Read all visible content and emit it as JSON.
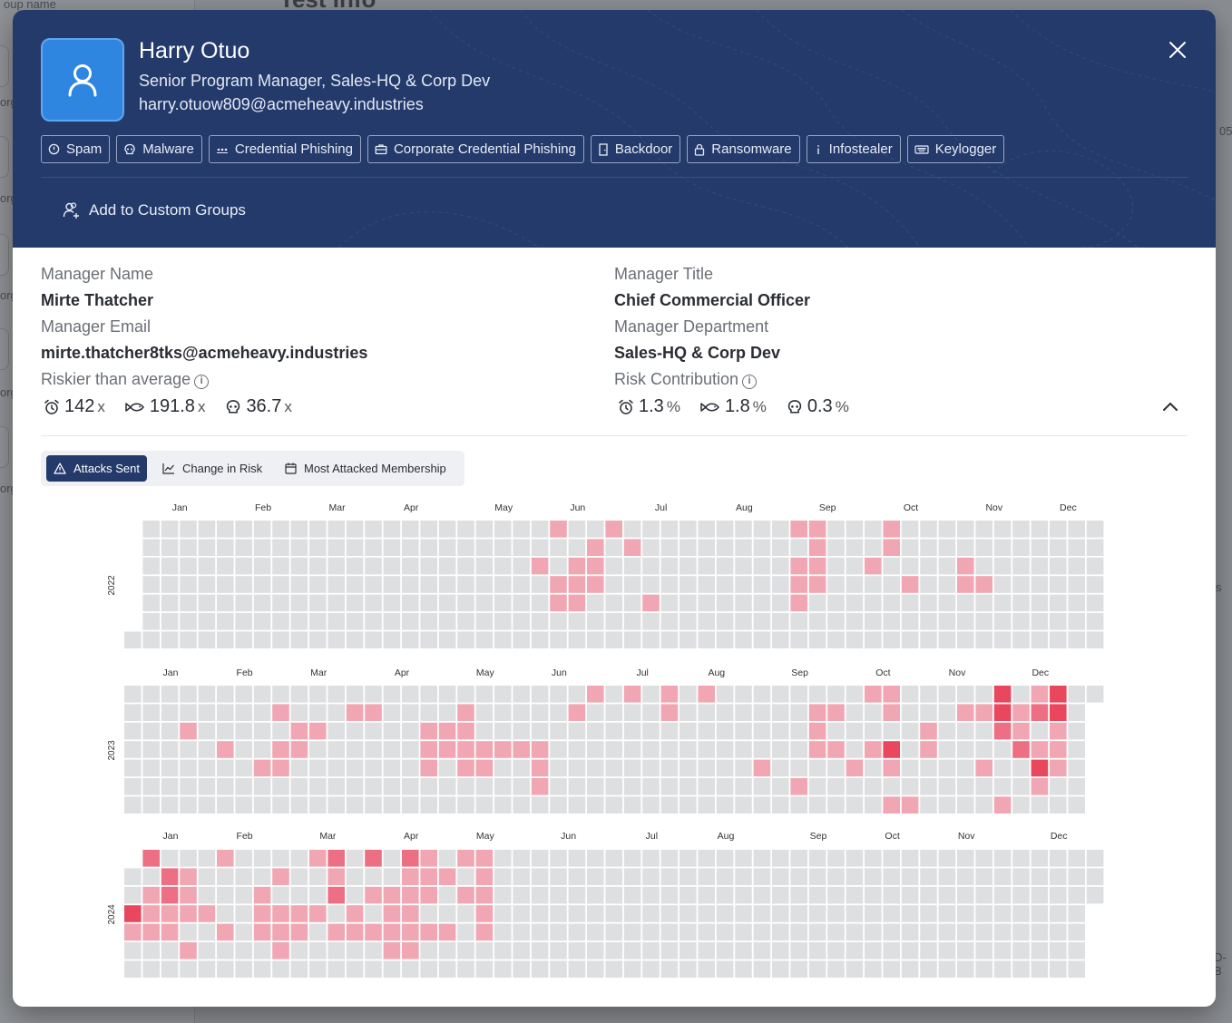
{
  "background": {
    "group_name_label": "oup name",
    "page_title": "Test Info",
    "stub_texts": [
      "org",
      "org",
      "org",
      "org",
      "org"
    ],
    "right_stubs": [
      "05",
      "s",
      "D-B"
    ]
  },
  "profile": {
    "name": "Harry Otuo",
    "title": "Senior Program Manager,  Sales-HQ & Corp Dev",
    "email": "harry.otuow809@acmeheavy.industries",
    "tags": [
      {
        "label": "Spam",
        "icon": "alert-circle-icon"
      },
      {
        "label": "Malware",
        "icon": "skull-icon"
      },
      {
        "label": "Credential Phishing",
        "icon": "dots-icon"
      },
      {
        "label": "Corporate Credential Phishing",
        "icon": "briefcase-icon"
      },
      {
        "label": "Backdoor",
        "icon": "door-icon"
      },
      {
        "label": "Ransomware",
        "icon": "lock-icon"
      },
      {
        "label": "Infostealer",
        "icon": "info-icon"
      },
      {
        "label": "Keylogger",
        "icon": "keyboard-icon"
      }
    ],
    "add_to_groups": "Add to Custom Groups"
  },
  "details": {
    "manager_name_label": "Manager Name",
    "manager_name": "Mirte Thatcher",
    "manager_email_label": "Manager Email",
    "manager_email": "mirte.thatcher8tks@acmeheavy.industries",
    "riskier_label": "Riskier than average",
    "manager_title_label": "Manager Title",
    "manager_title": "Chief Commercial Officer",
    "manager_department_label": "Manager Department",
    "manager_department": "Sales-HQ & Corp Dev",
    "risk_contribution_label": "Risk Contribution",
    "riskier_metrics": [
      {
        "icon": "alarm-icon",
        "value": "142",
        "unit": "x"
      },
      {
        "icon": "fish-icon",
        "value": "191.8",
        "unit": "x"
      },
      {
        "icon": "skull-icon",
        "value": "36.7",
        "unit": "x"
      }
    ],
    "contribution_metrics": [
      {
        "icon": "alarm-icon",
        "value": "1.3",
        "unit": "%"
      },
      {
        "icon": "fish-icon",
        "value": "1.8",
        "unit": "%"
      },
      {
        "icon": "skull-icon",
        "value": "0.3",
        "unit": "%"
      }
    ]
  },
  "tabs": [
    {
      "label": "Attacks Sent",
      "active": true,
      "icon": "warning-icon"
    },
    {
      "label": "Change in Risk",
      "active": false,
      "icon": "line-chart-icon"
    },
    {
      "label": "Most Attacked Membership",
      "active": false,
      "icon": "calendar-icon"
    }
  ],
  "colors": {
    "header": "#243a6b",
    "cell_empty": "#dedfe1",
    "level1": "#f0a7b3",
    "level2": "#ec6f83",
    "level3": "#e8475e"
  },
  "chart_data": {
    "type": "heatmap",
    "description_levels": "0 = no attacks, 1 = light, 2 = medium, 3 = high",
    "months": [
      "Jan",
      "Feb",
      "Mar",
      "Apr",
      "May",
      "Jun",
      "Jul",
      "Aug",
      "Sep",
      "Oct",
      "Nov",
      "Dec"
    ],
    "years": [
      {
        "year": "2022",
        "first_weekday": 6,
        "last_week": 52,
        "cells": [
          [
            23,
            0,
            1
          ],
          [
            22,
            2,
            1
          ],
          [
            24,
            2,
            1
          ],
          [
            23,
            3,
            1
          ],
          [
            24,
            3,
            1
          ],
          [
            25,
            3,
            1
          ],
          [
            26,
            0,
            1
          ],
          [
            27,
            1,
            1
          ],
          [
            24,
            4,
            1
          ],
          [
            28,
            4,
            1
          ],
          [
            23,
            4,
            1
          ],
          [
            25,
            1,
            1
          ],
          [
            25,
            2,
            1
          ],
          [
            36,
            0,
            1
          ],
          [
            37,
            0,
            1
          ],
          [
            37,
            1,
            1
          ],
          [
            36,
            2,
            1
          ],
          [
            37,
            2,
            1
          ],
          [
            36,
            3,
            1
          ],
          [
            37,
            3,
            1
          ],
          [
            36,
            4,
            1
          ],
          [
            41,
            0,
            1
          ],
          [
            41,
            1,
            1
          ],
          [
            40,
            2,
            1
          ],
          [
            42,
            3,
            1
          ],
          [
            45,
            2,
            1
          ],
          [
            45,
            3,
            1
          ],
          [
            46,
            3,
            1
          ]
        ]
      },
      {
        "year": "2023",
        "first_weekday": 0,
        "last_week": 52,
        "cells": [
          [
            3,
            2,
            1
          ],
          [
            5,
            3,
            1
          ],
          [
            7,
            4,
            1
          ],
          [
            8,
            1,
            1
          ],
          [
            8,
            3,
            1
          ],
          [
            8,
            4,
            1
          ],
          [
            9,
            2,
            1
          ],
          [
            10,
            2,
            1
          ],
          [
            9,
            3,
            1
          ],
          [
            12,
            1,
            1
          ],
          [
            13,
            1,
            1
          ],
          [
            16,
            2,
            1
          ],
          [
            17,
            2,
            1
          ],
          [
            17,
            3,
            1
          ],
          [
            18,
            2,
            1
          ],
          [
            18,
            3,
            1
          ],
          [
            19,
            3,
            1
          ],
          [
            16,
            3,
            1
          ],
          [
            16,
            4,
            1
          ],
          [
            18,
            4,
            1
          ],
          [
            19,
            4,
            1
          ],
          [
            18,
            1,
            1
          ],
          [
            20,
            3,
            1
          ],
          [
            21,
            3,
            1
          ],
          [
            22,
            3,
            1
          ],
          [
            22,
            4,
            1
          ],
          [
            22,
            5,
            1
          ],
          [
            24,
            1,
            1
          ],
          [
            25,
            0,
            1
          ],
          [
            27,
            0,
            1
          ],
          [
            29,
            0,
            1
          ],
          [
            29,
            1,
            1
          ],
          [
            31,
            0,
            1
          ],
          [
            34,
            4,
            1
          ],
          [
            36,
            5,
            1
          ],
          [
            37,
            1,
            1
          ],
          [
            37,
            2,
            1
          ],
          [
            37,
            3,
            1
          ],
          [
            38,
            1,
            1
          ],
          [
            38,
            3,
            1
          ],
          [
            39,
            4,
            1
          ],
          [
            40,
            0,
            1
          ],
          [
            41,
            0,
            1
          ],
          [
            41,
            1,
            1
          ],
          [
            41,
            3,
            3
          ],
          [
            41,
            4,
            1
          ],
          [
            40,
            3,
            1
          ],
          [
            41,
            6,
            1
          ],
          [
            42,
            6,
            1
          ],
          [
            43,
            2,
            1
          ],
          [
            43,
            3,
            1
          ],
          [
            45,
            1,
            1
          ],
          [
            46,
            1,
            1
          ],
          [
            46,
            4,
            1
          ],
          [
            47,
            0,
            3
          ],
          [
            47,
            1,
            3
          ],
          [
            47,
            2,
            2
          ],
          [
            47,
            6,
            1
          ],
          [
            48,
            1,
            1
          ],
          [
            48,
            2,
            1
          ],
          [
            48,
            3,
            2
          ],
          [
            49,
            0,
            1
          ],
          [
            49,
            1,
            2
          ],
          [
            49,
            3,
            1
          ],
          [
            49,
            4,
            3
          ],
          [
            49,
            5,
            1
          ],
          [
            50,
            0,
            3
          ],
          [
            50,
            1,
            3
          ],
          [
            50,
            2,
            1
          ],
          [
            50,
            3,
            1
          ],
          [
            50,
            4,
            1
          ],
          [
            52,
            1,
            1
          ],
          [
            52,
            2,
            1
          ],
          [
            52,
            3,
            1
          ]
        ]
      },
      {
        "year": "2024",
        "first_weekday": 1,
        "last_week": 52,
        "cells": [
          [
            0,
            3,
            3
          ],
          [
            0,
            4,
            1
          ],
          [
            1,
            0,
            2
          ],
          [
            1,
            2,
            1
          ],
          [
            1,
            3,
            1
          ],
          [
            1,
            4,
            1
          ],
          [
            2,
            1,
            2
          ],
          [
            2,
            2,
            2
          ],
          [
            2,
            3,
            1
          ],
          [
            2,
            4,
            1
          ],
          [
            3,
            1,
            1
          ],
          [
            3,
            2,
            1
          ],
          [
            3,
            3,
            1
          ],
          [
            3,
            5,
            1
          ],
          [
            4,
            3,
            1
          ],
          [
            5,
            0,
            1
          ],
          [
            5,
            4,
            1
          ],
          [
            7,
            2,
            1
          ],
          [
            7,
            3,
            1
          ],
          [
            7,
            4,
            1
          ],
          [
            8,
            1,
            1
          ],
          [
            8,
            3,
            1
          ],
          [
            8,
            4,
            1
          ],
          [
            8,
            5,
            1
          ],
          [
            9,
            3,
            1
          ],
          [
            9,
            4,
            1
          ],
          [
            10,
            0,
            1
          ],
          [
            10,
            3,
            1
          ],
          [
            11,
            0,
            2
          ],
          [
            11,
            1,
            1
          ],
          [
            11,
            2,
            2
          ],
          [
            11,
            4,
            1
          ],
          [
            12,
            3,
            1
          ],
          [
            12,
            4,
            1
          ],
          [
            13,
            0,
            2
          ],
          [
            13,
            2,
            1
          ],
          [
            13,
            4,
            1
          ],
          [
            14,
            2,
            1
          ],
          [
            14,
            3,
            1
          ],
          [
            14,
            4,
            1
          ],
          [
            14,
            5,
            1
          ],
          [
            15,
            0,
            2
          ],
          [
            15,
            1,
            1
          ],
          [
            15,
            2,
            1
          ],
          [
            15,
            3,
            1
          ],
          [
            15,
            4,
            1
          ],
          [
            15,
            5,
            1
          ],
          [
            16,
            0,
            1
          ],
          [
            16,
            1,
            1
          ],
          [
            16,
            2,
            1
          ],
          [
            16,
            4,
            1
          ],
          [
            17,
            1,
            1
          ],
          [
            17,
            4,
            1
          ],
          [
            18,
            0,
            1
          ],
          [
            18,
            2,
            1
          ],
          [
            19,
            0,
            1
          ],
          [
            19,
            1,
            1
          ],
          [
            19,
            2,
            1
          ],
          [
            19,
            3,
            1
          ],
          [
            19,
            4,
            1
          ]
        ]
      }
    ]
  }
}
